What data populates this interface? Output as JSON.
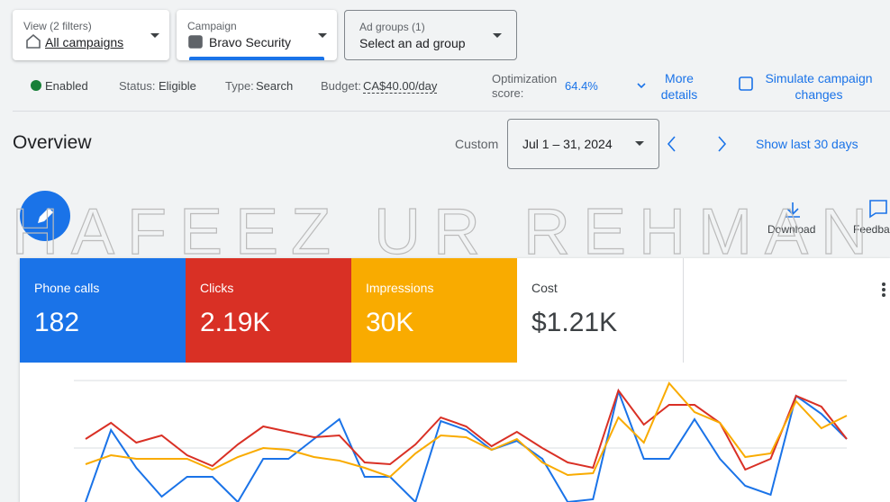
{
  "filters": [
    {
      "label": "View (2 filters)",
      "value": "All campaigns"
    },
    {
      "label": "Campaign",
      "value": "Bravo Security"
    },
    {
      "label": "Ad groups (1)",
      "value": "Select an ad group"
    }
  ],
  "status": {
    "enabled": "Enabled",
    "status_label": "Status:",
    "status": "Eligible",
    "type_label": "Type:",
    "type": "Search",
    "budget_label": "Budget:",
    "budget": "CA$40.00/day",
    "optimization_label": "Optimization score:",
    "optimization_score": "64.4%",
    "more_details": "More details",
    "simulate": "Simulate campaign changes"
  },
  "overview": {
    "title": "Overview",
    "range_label": "Custom",
    "date_range": "Jul 1 – 31, 2024",
    "show_last": "Show last 30 days",
    "download": "Download",
    "feedback": "Feedback"
  },
  "metrics": [
    {
      "label": "Phone calls",
      "value": "182",
      "color": "#1a73e8"
    },
    {
      "label": "Clicks",
      "value": "2.19K",
      "color": "#d93025"
    },
    {
      "label": "Impressions",
      "value": "30K",
      "color": "#f9ab00"
    },
    {
      "label": "Cost",
      "value": "$1.21K",
      "color": "#ffffff"
    }
  ],
  "chart": {
    "type": "line",
    "ylim": [
      0,
      135
    ],
    "gridlines": [
      60,
      135
    ],
    "series": [
      {
        "color": "#1a73e8",
        "values": [
          0,
          80,
          38,
          6,
          28,
          28,
          0,
          48,
          48,
          70,
          92,
          28,
          28,
          0,
          90,
          80,
          58,
          68,
          48,
          0,
          3,
          123,
          48,
          48,
          92,
          48,
          18,
          8,
          118,
          98,
          70
        ]
      },
      {
        "color": "#d93025",
        "values": [
          70,
          88,
          66,
          74,
          52,
          40,
          64,
          84,
          78,
          72,
          74,
          44,
          42,
          64,
          94,
          84,
          62,
          78,
          60,
          44,
          38,
          124,
          86,
          108,
          108,
          88,
          36,
          48,
          118,
          106,
          70
        ]
      },
      {
        "color": "#f9ab00",
        "values": [
          42,
          52,
          48,
          48,
          48,
          36,
          50,
          60,
          58,
          50,
          46,
          38,
          28,
          54,
          74,
          72,
          58,
          70,
          44,
          30,
          32,
          94,
          66,
          132,
          100,
          88,
          50,
          54,
          112,
          82,
          96
        ]
      }
    ]
  },
  "watermark": "HAFEEZ UR REHMAN"
}
